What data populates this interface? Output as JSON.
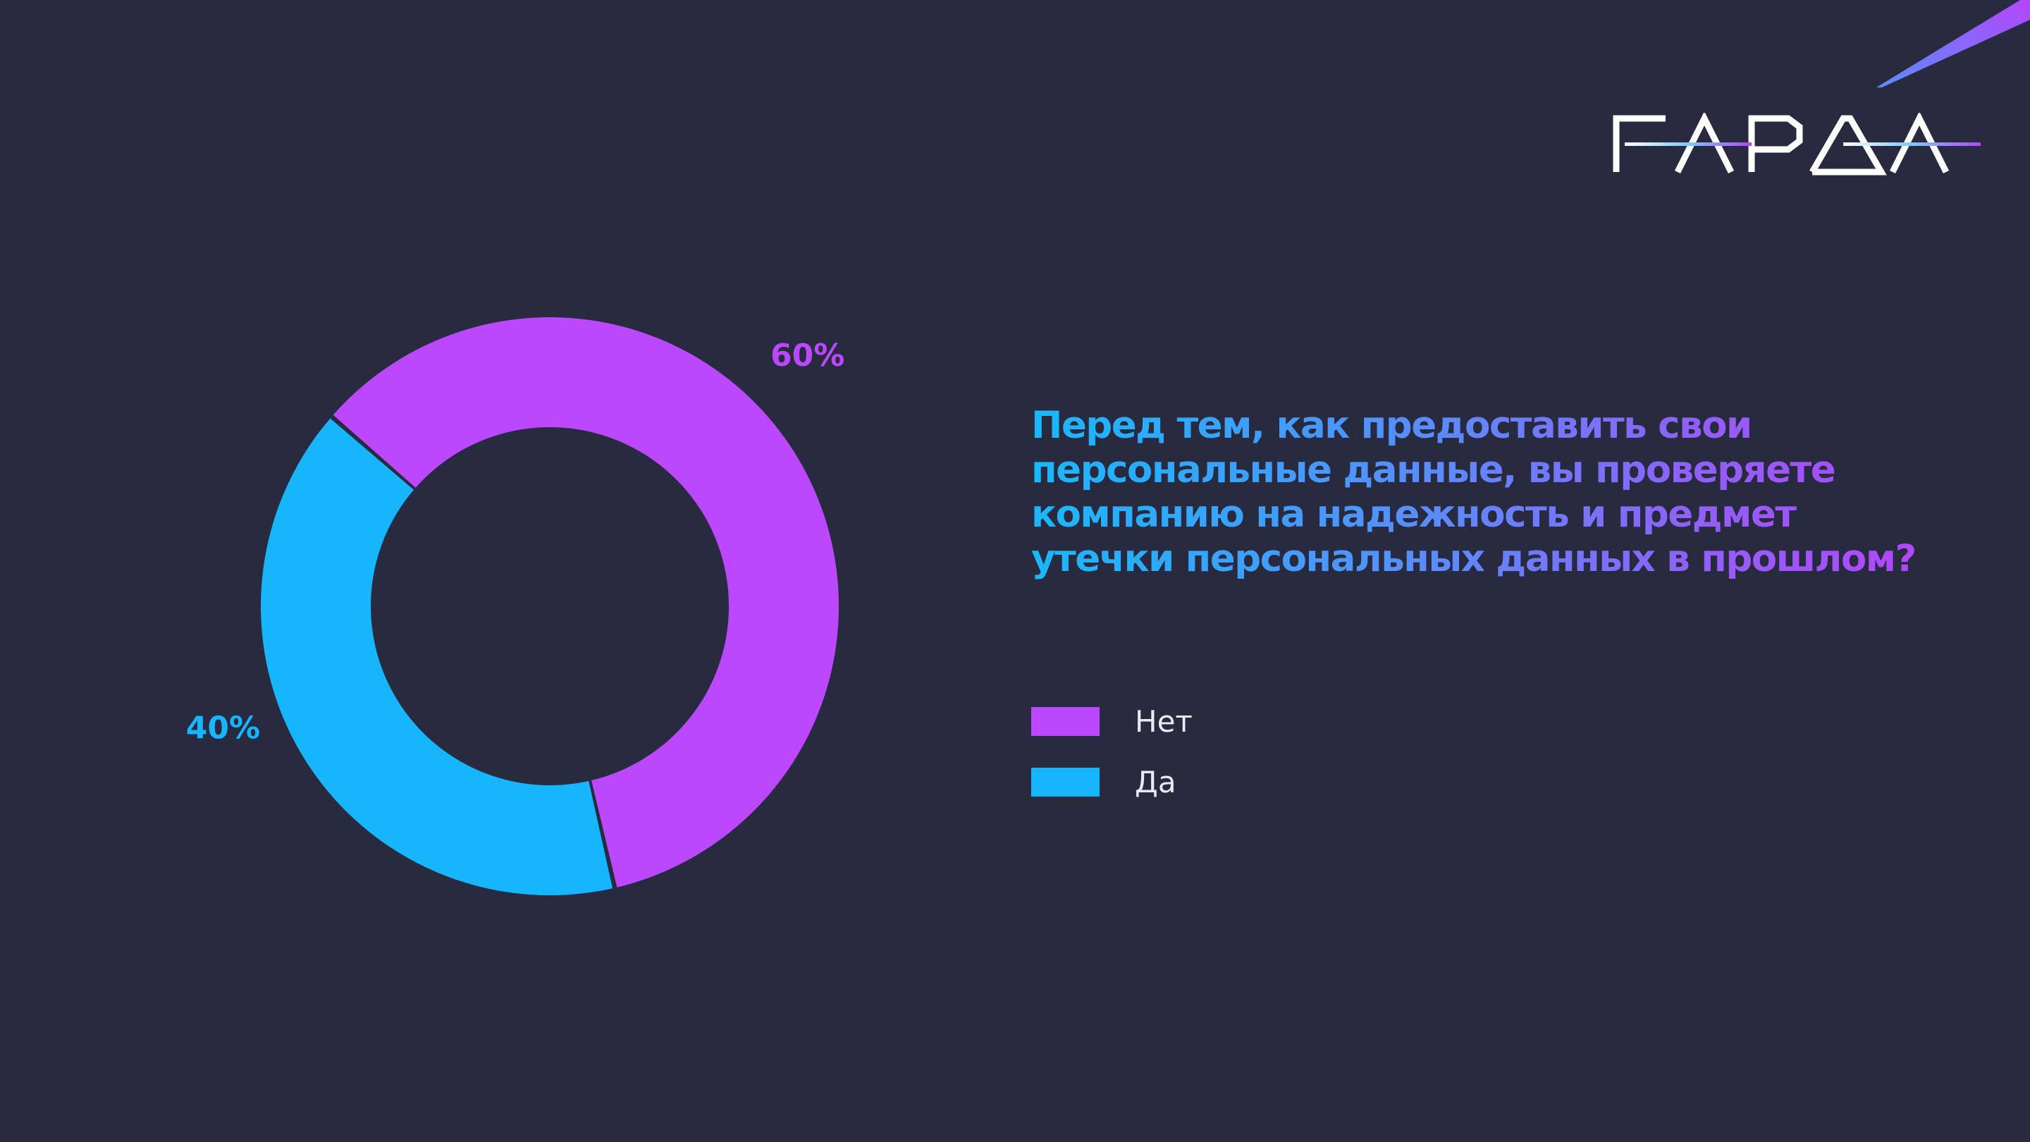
{
  "colors": {
    "background": "#282a40",
    "no": "#bc48fd",
    "yes": "#17b6fc"
  },
  "logo": {
    "text": "ГАРДА"
  },
  "question": "Перед тем, как предоставить свои персональные данные, вы проверяете компанию на надежность и предмет утечки персональных данных в прошлом?",
  "chart_data": {
    "type": "pie",
    "variant": "donut",
    "categories": [
      "Нет",
      "Да"
    ],
    "values": [
      60,
      40
    ],
    "unit": "%",
    "data_labels": [
      "60%",
      "40%"
    ],
    "colors": [
      "#bc48fd",
      "#17b6fc"
    ],
    "legend_placement": "right",
    "title": ""
  },
  "legend": [
    {
      "label": "Нет",
      "color": "#bc48fd"
    },
    {
      "label": "Да",
      "color": "#17b6fc"
    }
  ]
}
